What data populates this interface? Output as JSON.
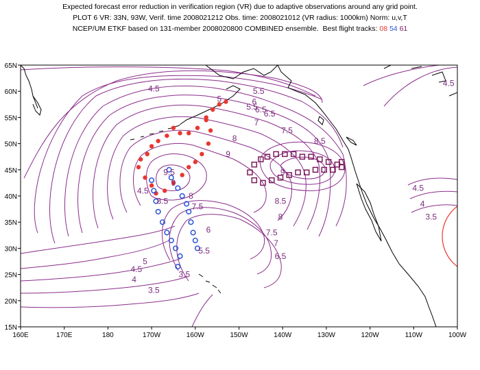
{
  "header": {
    "line1": "Expected forecast error reduction in verification region (VR) due to adaptive observations around any grid point.",
    "line2": "PLOT 6 VR: 33N, 93W, Verif. time 2008021212 Obs. time: 2008021012 (VR radius: 1000km) Norm: u,v,T",
    "line3_prefix": "NCEP/UM ETKF based on 131-member 2008020800 COMBINED ensemble.  Best flight tracks:",
    "track_labels": [
      {
        "label": "08",
        "color": "#e8372f"
      },
      {
        "label": "54",
        "color": "#2a52d9"
      },
      {
        "label": "61",
        "color": "#7b1a5a"
      }
    ]
  },
  "axes": {
    "x_ticks": [
      "160E",
      "170E",
      "180",
      "170W",
      "160W",
      "150W",
      "140W",
      "130W",
      "120W",
      "110W",
      "100W"
    ],
    "y_ticks": [
      "65N",
      "60N",
      "55N",
      "50N",
      "45N",
      "40N",
      "35N",
      "30N",
      "25N",
      "20N",
      "15N"
    ]
  },
  "colors": {
    "contour": "#8a2c8a",
    "contour_label": "#7b2a7b",
    "coast": "#000000",
    "vr_circle": "#e8372f",
    "track_08": "#e8372f",
    "track_54": "#2a52d9",
    "track_61": "#7b1a5a"
  },
  "contour_labels": [
    {
      "text": "4.5",
      "lon": -169.5,
      "lat": 60.5
    },
    {
      "text": "5",
      "lon": -154.5,
      "lat": 58.5
    },
    {
      "text": "5.5",
      "lon": -145.5,
      "lat": 60.0
    },
    {
      "text": "6",
      "lon": -146.5,
      "lat": 58.0
    },
    {
      "text": "6.5",
      "lon": -143.0,
      "lat": 55.7
    },
    {
      "text": "7",
      "lon": -146.0,
      "lat": 54.0
    },
    {
      "text": "7.5",
      "lon": -139.0,
      "lat": 52.5
    },
    {
      "text": "8",
      "lon": -151.0,
      "lat": 51.0
    },
    {
      "text": "8.5",
      "lon": -131.5,
      "lat": 50.5
    },
    {
      "text": "9",
      "lon": -152.5,
      "lat": 48.0
    },
    {
      "text": "9",
      "lon": -140.0,
      "lat": 44.5
    },
    {
      "text": "9.5",
      "lon": -166.0,
      "lat": 44.5
    },
    {
      "text": "9",
      "lon": -165.0,
      "lat": 42.5
    },
    {
      "text": "8.5",
      "lon": -167.5,
      "lat": 39.0
    },
    {
      "text": "8",
      "lon": -161.0,
      "lat": 40.0
    },
    {
      "text": "7.5",
      "lon": -159.5,
      "lat": 38.0
    },
    {
      "text": "8.5",
      "lon": -140.5,
      "lat": 39.0
    },
    {
      "text": "8",
      "lon": -140.5,
      "lat": 36.0
    },
    {
      "text": "7.5",
      "lon": -142.5,
      "lat": 33.0
    },
    {
      "text": "7",
      "lon": -141.5,
      "lat": 31.0
    },
    {
      "text": "6.5",
      "lon": -140.5,
      "lat": 28.5
    },
    {
      "text": "6",
      "lon": -157.0,
      "lat": 33.5
    },
    {
      "text": "5.5",
      "lon": -158.0,
      "lat": 29.5
    },
    {
      "text": "5",
      "lon": -171.5,
      "lat": 27.5
    },
    {
      "text": "4.5",
      "lon": -173.5,
      "lat": 26.0
    },
    {
      "text": "4",
      "lon": -174.0,
      "lat": 24.0
    },
    {
      "text": "3.5",
      "lon": -169.5,
      "lat": 22.0
    },
    {
      "text": "3.5",
      "lon": -162.5,
      "lat": 25.0
    },
    {
      "text": "4.5",
      "lon": -172.0,
      "lat": 41.0
    },
    {
      "text": "5.5",
      "lon": -147.0,
      "lat": 57.0
    },
    {
      "text": "6.5",
      "lon": -145.0,
      "lat": 56.5
    },
    {
      "text": "4.5",
      "lon": -109.0,
      "lat": 41.5
    },
    {
      "text": "4",
      "lon": -108.0,
      "lat": 38.5
    },
    {
      "text": "3.5",
      "lon": -106.0,
      "lat": 36.0
    },
    {
      "text": "4.5",
      "lon": -102.0,
      "lat": 61.5
    }
  ],
  "tracks": {
    "t08": [
      [
        -153.0,
        58.0
      ],
      [
        -154.5,
        57.5
      ],
      [
        -156.0,
        56.5
      ],
      [
        -157.5,
        55.0
      ],
      [
        -159.5,
        53.0
      ],
      [
        -161.5,
        52.0
      ],
      [
        -163.5,
        52.0
      ],
      [
        -165.0,
        53.0
      ],
      [
        -166.5,
        51.5
      ],
      [
        -168.5,
        50.5
      ],
      [
        -170.0,
        49.5
      ],
      [
        -171.0,
        48.0
      ],
      [
        -172.5,
        47.0
      ],
      [
        -173.0,
        45.5
      ],
      [
        -171.5,
        43.5
      ],
      [
        -170.0,
        42.0
      ],
      [
        -169.0,
        40.5
      ],
      [
        -167.0,
        41.0
      ],
      [
        -165.0,
        42.5
      ],
      [
        -163.0,
        44.0
      ],
      [
        -161.5,
        45.5
      ],
      [
        -160.0,
        46.5
      ],
      [
        -158.5,
        48.0
      ],
      [
        -157.0,
        50.0
      ],
      [
        -156.5,
        52.5
      ],
      [
        -157.5,
        54.5
      ]
    ],
    "t54": [
      [
        -170.0,
        43.0
      ],
      [
        -169.5,
        41.0
      ],
      [
        -169.0,
        39.0
      ],
      [
        -168.5,
        37.0
      ],
      [
        -167.5,
        35.0
      ],
      [
        -166.5,
        33.0
      ],
      [
        -165.5,
        31.5
      ],
      [
        -164.5,
        30.0
      ],
      [
        -163.5,
        28.5
      ],
      [
        -164.0,
        26.5
      ],
      [
        -163.0,
        40.0
      ],
      [
        -162.0,
        38.5
      ],
      [
        -161.5,
        37.0
      ],
      [
        -161.0,
        35.0
      ],
      [
        -160.5,
        33.0
      ],
      [
        -160.0,
        31.5
      ],
      [
        -159.5,
        30.0
      ],
      [
        -166.0,
        45.0
      ],
      [
        -165.5,
        43.5
      ],
      [
        -164.0,
        41.5
      ]
    ],
    "t61": [
      [
        -147.5,
        44.5
      ],
      [
        -146.5,
        46.0
      ],
      [
        -145.0,
        47.0
      ],
      [
        -143.5,
        47.5
      ],
      [
        -141.5,
        48.0
      ],
      [
        -139.5,
        48.0
      ],
      [
        -137.5,
        48.0
      ],
      [
        -135.5,
        47.5
      ],
      [
        -133.5,
        47.5
      ],
      [
        -131.5,
        47.0
      ],
      [
        -129.5,
        46.5
      ],
      [
        -127.5,
        46.0
      ],
      [
        -126.5,
        45.5
      ],
      [
        -146.5,
        43.0
      ],
      [
        -144.5,
        42.5
      ],
      [
        -142.5,
        43.0
      ],
      [
        -140.5,
        43.5
      ],
      [
        -138.5,
        44.0
      ],
      [
        -136.5,
        44.5
      ],
      [
        -134.5,
        44.5
      ],
      [
        -132.5,
        45.0
      ],
      [
        -130.5,
        45.0
      ],
      [
        -128.5,
        45.0
      ],
      [
        -126.5,
        46.5
      ]
    ]
  }
}
